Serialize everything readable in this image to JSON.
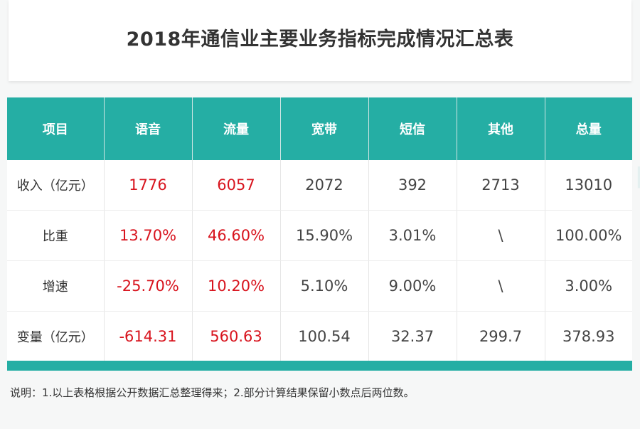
{
  "title": "2018年通信业主要业务指标完成情况汇总表",
  "table": {
    "headers": [
      "项目",
      "语音",
      "流量",
      "宽带",
      "短信",
      "其他",
      "总量"
    ],
    "rows": [
      {
        "label": "收入（亿元）",
        "cells": [
          "1776",
          "6057",
          "2072",
          "392",
          "2713",
          "13010"
        ]
      },
      {
        "label": "比重",
        "cells": [
          "13.70%",
          "46.60%",
          "15.90%",
          "3.01%",
          "\\",
          "100.00%"
        ]
      },
      {
        "label": "增速",
        "cells": [
          "-25.70%",
          "10.20%",
          "5.10%",
          "9.00%",
          "\\",
          "3.00%"
        ]
      },
      {
        "label": "变量（亿元）",
        "cells": [
          "-614.31",
          "560.63",
          "100.54",
          "32.37",
          "299.7",
          "378.93"
        ]
      }
    ]
  },
  "note": "说明：1.以上表格根据公开数据汇总整理得来；2.部分计算结果保留小数点后两位数。",
  "colors": {
    "accent": "#25aea4",
    "highlight": "#d8141e",
    "text": "#444444"
  }
}
